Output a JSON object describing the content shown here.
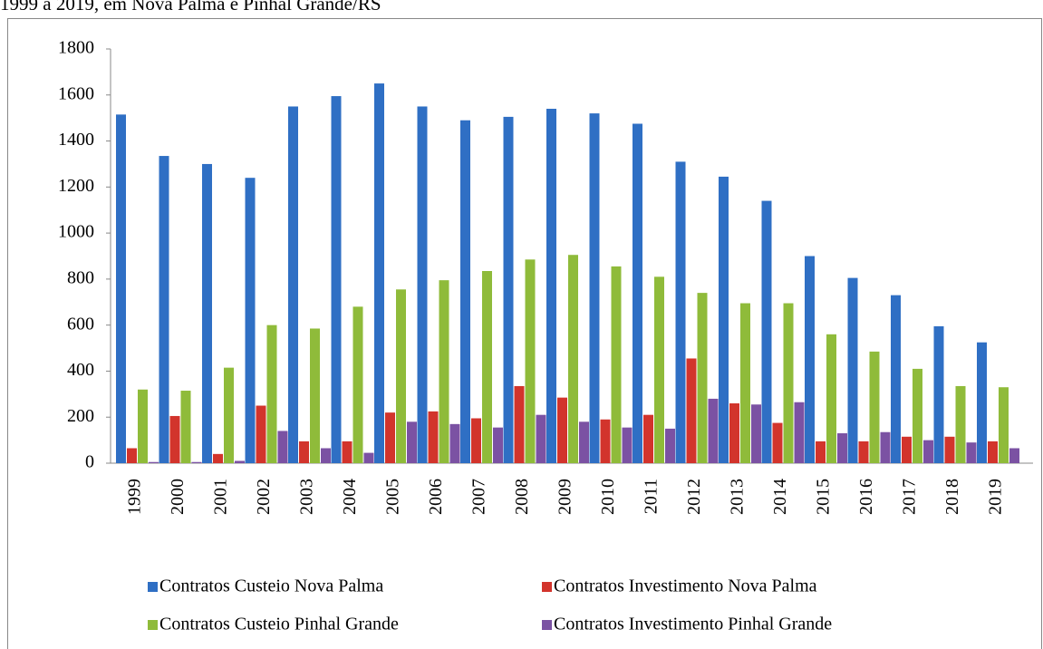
{
  "chart_data": {
    "type": "bar",
    "title": "1999 a 2019, em Nova Palma e Pinhal Grande/RS",
    "categories": [
      "1999",
      "2000",
      "2001",
      "2002",
      "2003",
      "2004",
      "2005",
      "2006",
      "2007",
      "2008",
      "2009",
      "2010",
      "2011",
      "2012",
      "2013",
      "2014",
      "2015",
      "2016",
      "2017",
      "2018",
      "2019"
    ],
    "series": [
      {
        "name": "Contratos Custeio Nova Palma",
        "color": "#2f6fc4",
        "values": [
          1515,
          1335,
          1300,
          1240,
          1550,
          1595,
          1650,
          1550,
          1490,
          1505,
          1540,
          1520,
          1475,
          1310,
          1245,
          1140,
          900,
          805,
          730,
          595,
          525
        ]
      },
      {
        "name": "Contratos Investimento Nova Palma",
        "color": "#d2342c",
        "values": [
          65,
          205,
          40,
          250,
          95,
          95,
          220,
          225,
          195,
          335,
          285,
          190,
          210,
          455,
          260,
          175,
          95,
          95,
          115,
          115,
          95
        ]
      },
      {
        "name": "Contratos Custeio Pinhal Grande",
        "color": "#8fbb3a",
        "values": [
          320,
          315,
          415,
          600,
          585,
          680,
          755,
          795,
          835,
          885,
          905,
          855,
          810,
          740,
          695,
          695,
          560,
          485,
          410,
          335,
          330
        ]
      },
      {
        "name": "Contratos Investimento Pinhal Grande",
        "color": "#7b52a3",
        "values": [
          5,
          5,
          10,
          140,
          65,
          45,
          180,
          170,
          155,
          210,
          180,
          155,
          150,
          280,
          255,
          265,
          130,
          135,
          100,
          90,
          65
        ]
      }
    ],
    "ylim": [
      0,
      1800
    ],
    "yticks": [
      0,
      200,
      400,
      600,
      800,
      1000,
      1200,
      1400,
      1600,
      1800
    ],
    "legend": "bottom"
  }
}
